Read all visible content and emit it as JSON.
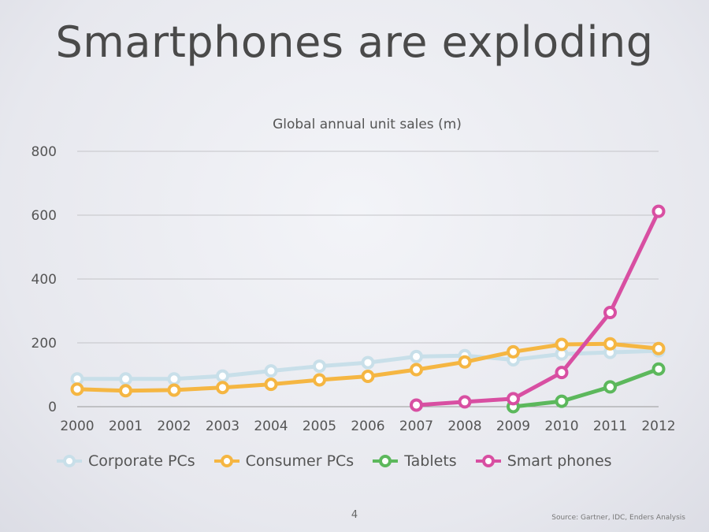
{
  "slide": {
    "title": "Smartphones are exploding",
    "page_number": "4",
    "source": "Source: Gartner, IDC, Enders Analysis"
  },
  "chart_data": {
    "type": "line",
    "title": "Global annual unit sales (m)",
    "xlabel": "",
    "ylabel": "",
    "ylim": [
      0,
      800
    ],
    "yticks": [
      0,
      200,
      400,
      600,
      800
    ],
    "grid": true,
    "legend_position": "bottom",
    "x": [
      "2000",
      "2001",
      "2002",
      "2003",
      "2004",
      "2005",
      "2006",
      "2007",
      "2008",
      "2009",
      "2010",
      "2011",
      "2012"
    ],
    "series": [
      {
        "name": "Corporate PCs",
        "color": "#c8dfe9",
        "values": [
          87,
          87,
          87,
          96,
          112,
          127,
          138,
          157,
          160,
          147,
          165,
          170,
          175
        ]
      },
      {
        "name": "Consumer PCs",
        "color": "#f5b642",
        "values": [
          55,
          50,
          52,
          60,
          70,
          84,
          95,
          116,
          140,
          172,
          195,
          197,
          182
        ]
      },
      {
        "name": "Tablets",
        "color": "#5cb85c",
        "values": [
          null,
          null,
          null,
          null,
          null,
          null,
          null,
          null,
          null,
          0,
          17,
          62,
          118
        ]
      },
      {
        "name": "Smart phones",
        "color": "#d84fa2",
        "values": [
          null,
          null,
          null,
          null,
          null,
          null,
          null,
          5,
          15,
          25,
          107,
          295,
          612
        ]
      }
    ]
  }
}
